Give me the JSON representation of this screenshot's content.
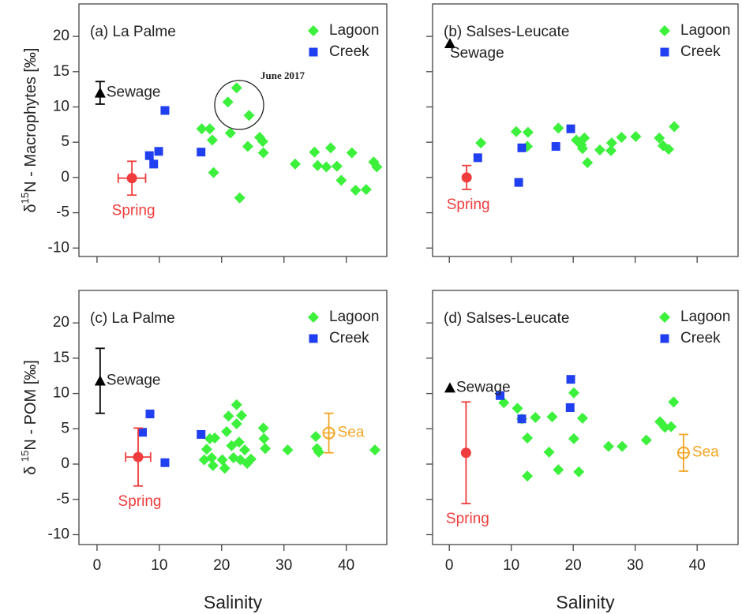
{
  "chart_data": [
    {
      "type": "scatter",
      "panel_label": "(a) La Palme",
      "y_label": [
        "δ",
        "15",
        "N - Macrophytes  [‰]"
      ],
      "legend": "top right",
      "xlim": [
        -2.9,
        46.5
      ],
      "ylim": [
        -11.2,
        24.6
      ],
      "xticks": [
        0,
        10,
        20,
        30,
        40
      ],
      "yticks": [
        -10,
        -5,
        0,
        5,
        10,
        15,
        20
      ],
      "annotation": "June 2017",
      "series": [
        {
          "name": "Lagoon",
          "color": "#3cf03c",
          "marker": "diamond",
          "x": [
            22.4,
            21.0,
            24.4,
            16.8,
            18.1,
            18.5,
            21.4,
            26.1,
            26.6,
            24.2,
            26.7,
            18.7,
            22.9,
            31.8,
            34.9,
            35.4,
            36.8,
            37.5,
            38.5,
            39.2,
            40.9,
            41.5,
            43.2,
            44.4,
            44.9
          ],
          "y": [
            12.7,
            10.7,
            8.8,
            6.9,
            6.9,
            5.3,
            6.3,
            5.7,
            5.1,
            4.4,
            3.5,
            0.7,
            -2.9,
            1.9,
            3.6,
            1.7,
            1.5,
            4.2,
            1.6,
            -0.4,
            3.5,
            -1.8,
            -1.7,
            2.2,
            1.5
          ]
        },
        {
          "name": "Creek",
          "color": "#1f3ff0",
          "marker": "square",
          "x": [
            8.4,
            9.1,
            9.9,
            10.9,
            16.7
          ],
          "y": [
            3.1,
            1.9,
            3.7,
            9.5,
            3.6
          ]
        }
      ],
      "endmembers": [
        {
          "name": "Sewage",
          "color": "#000000",
          "marker": "triangle",
          "x": 0.5,
          "y": 12.0,
          "yerr": 1.6
        },
        {
          "name": "Spring",
          "color": "#f03c3c",
          "marker": "circle",
          "x": 5.6,
          "xerr": 2.2,
          "y": -0.1,
          "yerr": 2.4
        }
      ]
    },
    {
      "type": "scatter",
      "panel_label": "(b) Salses-Leucate",
      "legend": "top right",
      "xlim": [
        -2.7,
        46.6
      ],
      "ylim": [
        -11.2,
        24.6
      ],
      "xticks": [
        0,
        10,
        20,
        30,
        40
      ],
      "yticks": [
        -10,
        -5,
        0,
        5,
        10,
        15,
        20
      ],
      "series": [
        {
          "name": "Lagoon",
          "color": "#3cf03c",
          "marker": "diamond",
          "x": [
            5.1,
            10.8,
            12.7,
            12.6,
            17.6,
            20.5,
            21.3,
            21.8,
            21.5,
            22.3,
            24.3,
            26.2,
            26.1,
            27.8,
            30.1,
            33.9,
            34.5,
            35.4,
            36.3
          ],
          "y": [
            4.9,
            6.5,
            6.4,
            4.4,
            7.0,
            5.3,
            4.6,
            5.6,
            4.1,
            2.1,
            3.9,
            4.9,
            3.8,
            5.7,
            5.8,
            5.6,
            4.5,
            4.0,
            7.2
          ]
        },
        {
          "name": "Creek",
          "color": "#1f3ff0",
          "marker": "square",
          "x": [
            4.6,
            11.2,
            11.7,
            17.2,
            19.6
          ],
          "y": [
            2.8,
            -0.7,
            4.2,
            4.4,
            6.9
          ]
        }
      ],
      "endmembers": [
        {
          "name": "Sewage",
          "color": "#000000",
          "marker": "triangle",
          "x": 0.1,
          "y": 19.0
        },
        {
          "name": "Spring",
          "color": "#f03c3c",
          "marker": "circle",
          "x": 2.8,
          "y": 0.0,
          "yerr": 1.7
        }
      ]
    },
    {
      "type": "scatter",
      "panel_label": "(c) La Palme",
      "y_label": [
        "δ ",
        "15",
        "N - POM [‰]"
      ],
      "x_label": "Salinity",
      "legend": "top right",
      "xlim": [
        -2.9,
        46.5
      ],
      "ylim": [
        -11.4,
        24.6
      ],
      "xticks": [
        0,
        10,
        20,
        30,
        40
      ],
      "yticks": [
        -10,
        -5,
        0,
        5,
        10,
        15,
        20
      ],
      "series": [
        {
          "name": "Lagoon",
          "color": "#3cf03c",
          "marker": "diamond",
          "x": [
            17.2,
            17.6,
            18.1,
            18.4,
            18.6,
            18.9,
            20.1,
            20.5,
            20.8,
            21.1,
            21.6,
            21.9,
            22.4,
            22.4,
            22.8,
            23.2,
            23.0,
            23.7,
            24.1,
            24.7,
            26.7,
            26.8,
            27.0,
            30.6,
            35.1,
            35.3,
            35.6,
            44.6
          ],
          "y": [
            0.6,
            2.1,
            3.6,
            0.9,
            -0.2,
            3.7,
            0.6,
            -0.6,
            4.6,
            6.8,
            2.6,
            0.9,
            5.7,
            8.4,
            3.1,
            6.9,
            0.6,
            2.0,
            0.1,
            0.7,
            5.1,
            3.6,
            2.2,
            2.0,
            3.9,
            2.2,
            1.7,
            2.0
          ]
        },
        {
          "name": "Creek",
          "color": "#1f3ff0",
          "marker": "square",
          "x": [
            8.5,
            7.3,
            10.9,
            16.7
          ],
          "y": [
            7.1,
            4.5,
            0.2,
            4.2
          ]
        }
      ],
      "endmembers": [
        {
          "name": "Sewage",
          "color": "#000000",
          "marker": "triangle",
          "x": 0.5,
          "y": 11.8,
          "yerr": 4.6
        },
        {
          "name": "Spring",
          "color": "#f03c3c",
          "marker": "circle",
          "x": 6.6,
          "xerr": 2.0,
          "y": 1.0,
          "yerr": 4.1
        },
        {
          "name": "Sea",
          "color": "#f5a524",
          "marker": "circle-cross",
          "x": 37.2,
          "y": 4.4,
          "yerr": 2.8
        }
      ]
    },
    {
      "type": "scatter",
      "panel_label": "(d) Salses-Leucate",
      "x_label": "Salinity",
      "legend": "top right",
      "xlim": [
        -2.7,
        46.6
      ],
      "ylim": [
        -11.4,
        24.6
      ],
      "xticks": [
        0,
        10,
        20,
        30,
        40
      ],
      "yticks": [
        -10,
        -5,
        0,
        5,
        10,
        15,
        20
      ],
      "series": [
        {
          "name": "Lagoon",
          "color": "#3cf03c",
          "marker": "diamond",
          "x": [
            8.8,
            11.0,
            11.7,
            13.9,
            12.6,
            12.6,
            16.6,
            16.1,
            17.6,
            20.1,
            20.1,
            21.5,
            20.9,
            25.7,
            27.9,
            31.8,
            34.0,
            34.8,
            35.8,
            36.2
          ],
          "y": [
            8.7,
            7.9,
            6.4,
            6.6,
            3.7,
            -1.7,
            6.7,
            1.7,
            -0.8,
            10.1,
            3.6,
            6.5,
            -1.1,
            2.5,
            2.5,
            3.4,
            6.0,
            5.2,
            5.3,
            8.8
          ]
        },
        {
          "name": "Creek",
          "color": "#1f3ff0",
          "marker": "square",
          "x": [
            8.2,
            11.7,
            19.5,
            19.6
          ],
          "y": [
            9.7,
            6.4,
            8.0,
            12.0
          ]
        }
      ],
      "endmembers": [
        {
          "name": "Sewage",
          "color": "#000000",
          "marker": "triangle",
          "x": 0.1,
          "y": 10.8
        },
        {
          "name": "Spring",
          "color": "#f03c3c",
          "marker": "circle",
          "x": 2.7,
          "y": 1.6,
          "yerr": 7.2
        },
        {
          "name": "Sea",
          "color": "#f5a524",
          "marker": "circle-cross",
          "x": 37.8,
          "y": 1.6,
          "yerr": 2.6
        }
      ]
    }
  ]
}
